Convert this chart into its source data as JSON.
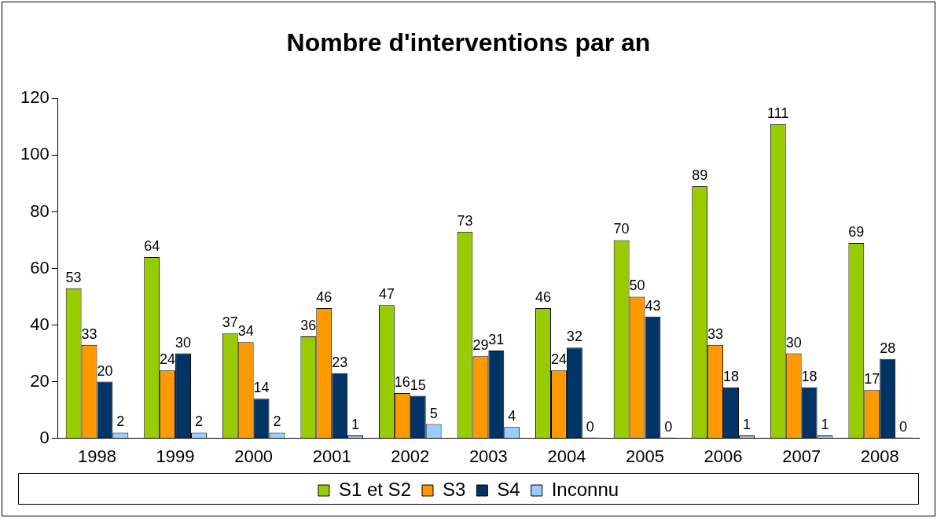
{
  "chart_data": {
    "type": "bar",
    "title": "Nombre d'interventions par an",
    "categories": [
      "1998",
      "1999",
      "2000",
      "2001",
      "2002",
      "2003",
      "2004",
      "2005",
      "2006",
      "2007",
      "2008"
    ],
    "series": [
      {
        "name": "S1 et S2",
        "color": "#99cc00",
        "values": [
          53,
          64,
          37,
          36,
          47,
          73,
          46,
          70,
          89,
          111,
          69
        ]
      },
      {
        "name": "S3",
        "color": "#ff9900",
        "values": [
          33,
          24,
          34,
          46,
          16,
          29,
          24,
          50,
          33,
          30,
          17
        ]
      },
      {
        "name": "S4",
        "color": "#003366",
        "values": [
          20,
          30,
          14,
          23,
          15,
          31,
          32,
          43,
          18,
          18,
          28
        ]
      },
      {
        "name": "Inconnu",
        "color": "#99ccff",
        "values": [
          2,
          2,
          2,
          1,
          5,
          4,
          0,
          0,
          1,
          1,
          0
        ]
      }
    ],
    "ylim": [
      0,
      120
    ],
    "yticks": [
      0,
      20,
      40,
      60,
      80,
      100,
      120
    ],
    "grid": false,
    "legend": "bottom",
    "data_labels": true
  }
}
